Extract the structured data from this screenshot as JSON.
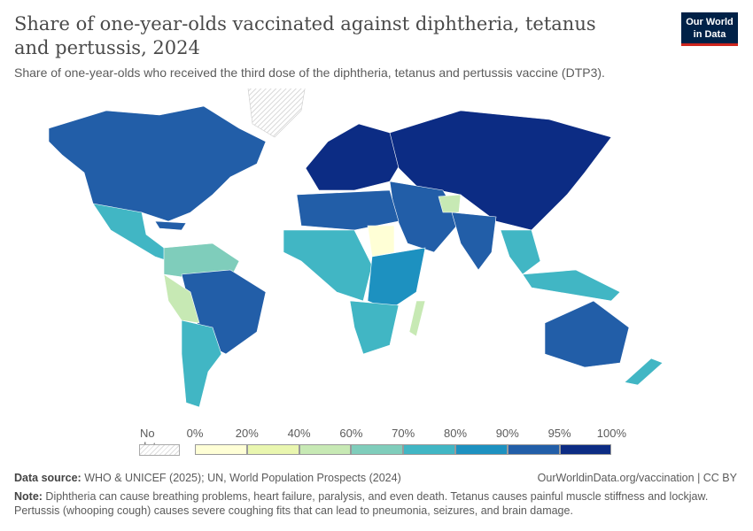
{
  "header": {
    "title": "Share of one-year-olds vaccinated against diphtheria, tetanus and pertussis, 2024",
    "subtitle": "Share of one-year-olds who received the third dose of the diphtheria, tetanus and pertussis vaccine (DTP3).",
    "logo": "Our World in Data"
  },
  "legend": {
    "no_data": "No data",
    "ticks": [
      "0%",
      "20%",
      "40%",
      "60%",
      "70%",
      "80%",
      "90%",
      "95%",
      "100%"
    ],
    "colors": [
      "#ffffd6",
      "#e9f6af",
      "#c7e9b4",
      "#7fcdbb",
      "#41b6c4",
      "#1d91c0",
      "#225ea8",
      "#0c2c84"
    ]
  },
  "footer": {
    "source_label": "Data source:",
    "source": " WHO & UNICEF (2025); UN, World Population Prospects (2024)",
    "url": "OurWorldinData.org/vaccination | CC BY",
    "note_label": "Note:",
    "note": " Diphtheria can cause breathing problems, heart failure, paralysis, and even death. Tetanus causes painful muscle stiffness and lockjaw. Pertussis (whooping cough) causes severe coughing fits that can lead to pneumonia, seizures, and brain damage."
  }
}
